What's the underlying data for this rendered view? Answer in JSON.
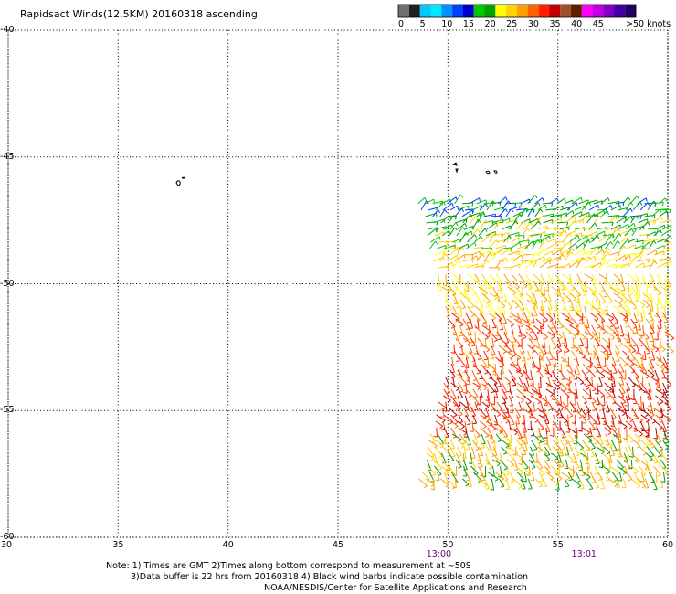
{
  "title": "Rapidsact Winds(12.5KM) 20160318 ascending",
  "legend": {
    "unit_label": ">50 knots",
    "stops": [
      {
        "label": "0",
        "colors": [
          "#707070",
          "#202020"
        ]
      },
      {
        "label": "5",
        "colors": [
          "#00c8ff",
          "#00e8ff"
        ]
      },
      {
        "label": "10",
        "colors": [
          "#0090ff",
          "#0040ff"
        ]
      },
      {
        "label": "15",
        "colors": [
          "#0000c8",
          "#00c800"
        ]
      },
      {
        "label": "20",
        "colors": [
          "#00a000",
          "#ffff00"
        ]
      },
      {
        "label": "25",
        "colors": [
          "#ffd200",
          "#ffa000"
        ]
      },
      {
        "label": "30",
        "colors": [
          "#ff6000",
          "#ff2000"
        ]
      },
      {
        "label": "35",
        "colors": [
          "#c00000",
          "#a05028"
        ]
      },
      {
        "label": "40",
        "colors": [
          "#602000",
          "#ff00ff"
        ]
      },
      {
        "label": "45",
        "colors": [
          "#c000e0",
          "#8000c0"
        ]
      },
      {
        "label": "",
        "colors": [
          "#4000a0",
          "#200060"
        ]
      }
    ]
  },
  "axes": {
    "lon_ticks": [
      "30",
      "35",
      "40",
      "45",
      "50",
      "55",
      "60"
    ],
    "lat_ticks": [
      "-40",
      "-45",
      "-50",
      "-55",
      "-60"
    ],
    "lon_range": [
      30,
      60
    ],
    "lat_range": [
      -60,
      -40
    ],
    "grid": "dotted"
  },
  "time_labels": [
    {
      "label": "13:00",
      "lon": 49.6
    },
    {
      "label": "13:01",
      "lon": 56.2
    }
  ],
  "swath": {
    "lon_range": [
      48.6,
      60
    ],
    "lat_range": [
      -57.9,
      -46.7
    ]
  },
  "notes": [
    "Note: 1) Times are GMT 2)Times along bottom correspond to measurement at ~50S",
    "3)Data buffer is 22 hrs from 20160318 4) Black wind barbs indicate possible contamination"
  ],
  "credit": "NOAA/NESDIS/Center for Satellite Applications and Research"
}
